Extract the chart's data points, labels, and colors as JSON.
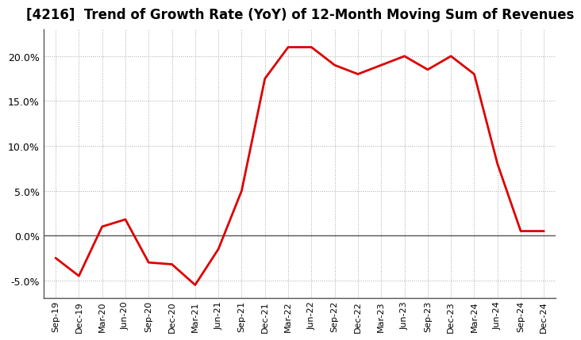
{
  "title": "[4216]  Trend of Growth Rate (YoY) of 12-Month Moving Sum of Revenues",
  "x_labels": [
    "Sep-19",
    "Dec-19",
    "Mar-20",
    "Jun-20",
    "Sep-20",
    "Dec-20",
    "Mar-21",
    "Jun-21",
    "Sep-21",
    "Dec-21",
    "Mar-22",
    "Jun-22",
    "Sep-22",
    "Dec-22",
    "Mar-23",
    "Jun-23",
    "Sep-23",
    "Dec-23",
    "Mar-24",
    "Jun-24",
    "Sep-24",
    "Dec-24"
  ],
  "x_values": [
    0,
    1,
    2,
    3,
    4,
    5,
    6,
    7,
    8,
    9,
    10,
    11,
    12,
    13,
    14,
    15,
    16,
    17,
    18,
    19,
    20,
    21
  ],
  "y_values": [
    -2.5,
    -4.5,
    1.0,
    1.8,
    -3.0,
    -3.2,
    -5.5,
    -1.5,
    5.0,
    17.5,
    21.0,
    21.0,
    19.0,
    18.0,
    19.0,
    20.0,
    18.5,
    20.0,
    18.0,
    8.0,
    0.5,
    0.5
  ],
  "line_color": "#dd0000",
  "line_width": 2.0,
  "ylim": [
    -7,
    23
  ],
  "yticks": [
    -5.0,
    0.0,
    5.0,
    10.0,
    15.0,
    20.0
  ],
  "background_color": "#ffffff",
  "plot_bg_color": "#ffffff",
  "grid_color": "#aaaaaa",
  "title_fontsize": 12,
  "zero_line_color": "#555555",
  "spine_color": "#555555"
}
